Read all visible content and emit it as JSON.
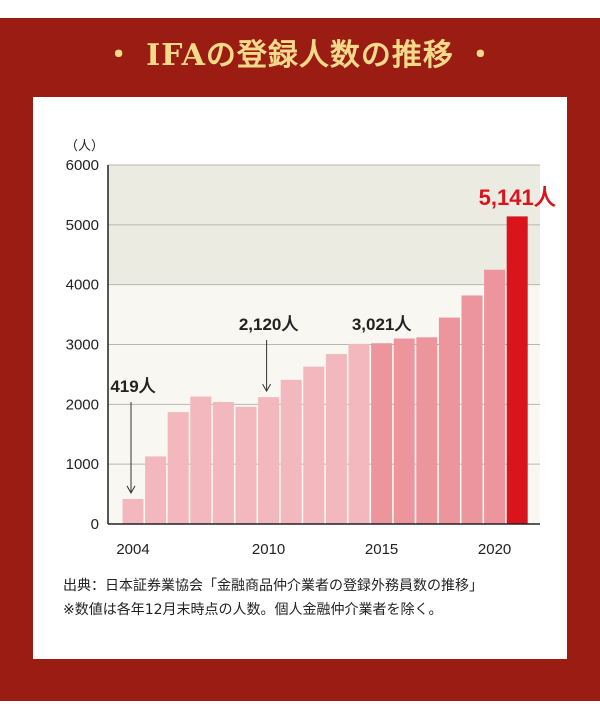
{
  "title": "・ IFAの登録人数の推移 ・",
  "colors": {
    "frame": "#9a1c12",
    "title": "#f3d98a",
    "plot_background_upper": "#ecebe2",
    "plot_background_lower": "#f8f7f2",
    "bar_early": "#f2b8bd",
    "bar_mid": "#ec959d",
    "bar_latest": "#d9141c",
    "highlight_label": "#d9141c"
  },
  "chart_data": {
    "type": "bar",
    "ylabel": "（人）",
    "ylim": [
      0,
      6000
    ],
    "yticks": [
      "0",
      "1000",
      "2000",
      "3000",
      "4000",
      "5000",
      "6000"
    ],
    "x": [
      2004,
      2005,
      2006,
      2007,
      2008,
      2009,
      2010,
      2011,
      2012,
      2013,
      2014,
      2015,
      2016,
      2017,
      2018,
      2019,
      2020,
      2021
    ],
    "xticks": [
      "2004",
      "2010",
      "2015",
      "2020"
    ],
    "values": [
      419,
      1130,
      1870,
      2130,
      2040,
      1960,
      2120,
      2410,
      2630,
      2840,
      3010,
      3021,
      3100,
      3120,
      3450,
      3820,
      4250,
      5141
    ],
    "annotations": [
      {
        "text": "419人",
        "year": 2004,
        "value": 419,
        "arrow": true
      },
      {
        "text": "2,120人",
        "year": 2010,
        "value": 2120,
        "arrow": true
      },
      {
        "text": "3,021人",
        "year": 2015,
        "value": 3021,
        "arrow": false
      },
      {
        "text": "5,141人",
        "year": 2021,
        "value": 5141,
        "arrow": false,
        "highlight": true
      }
    ],
    "grid": true,
    "legend": "none"
  },
  "source": {
    "line1": "出典：日本証券業協会「金融商品仲介業者の登録外務員数の推移」",
    "line2": "※数値は各年12月末時点の人数。個人金融仲介業者を除く。"
  }
}
